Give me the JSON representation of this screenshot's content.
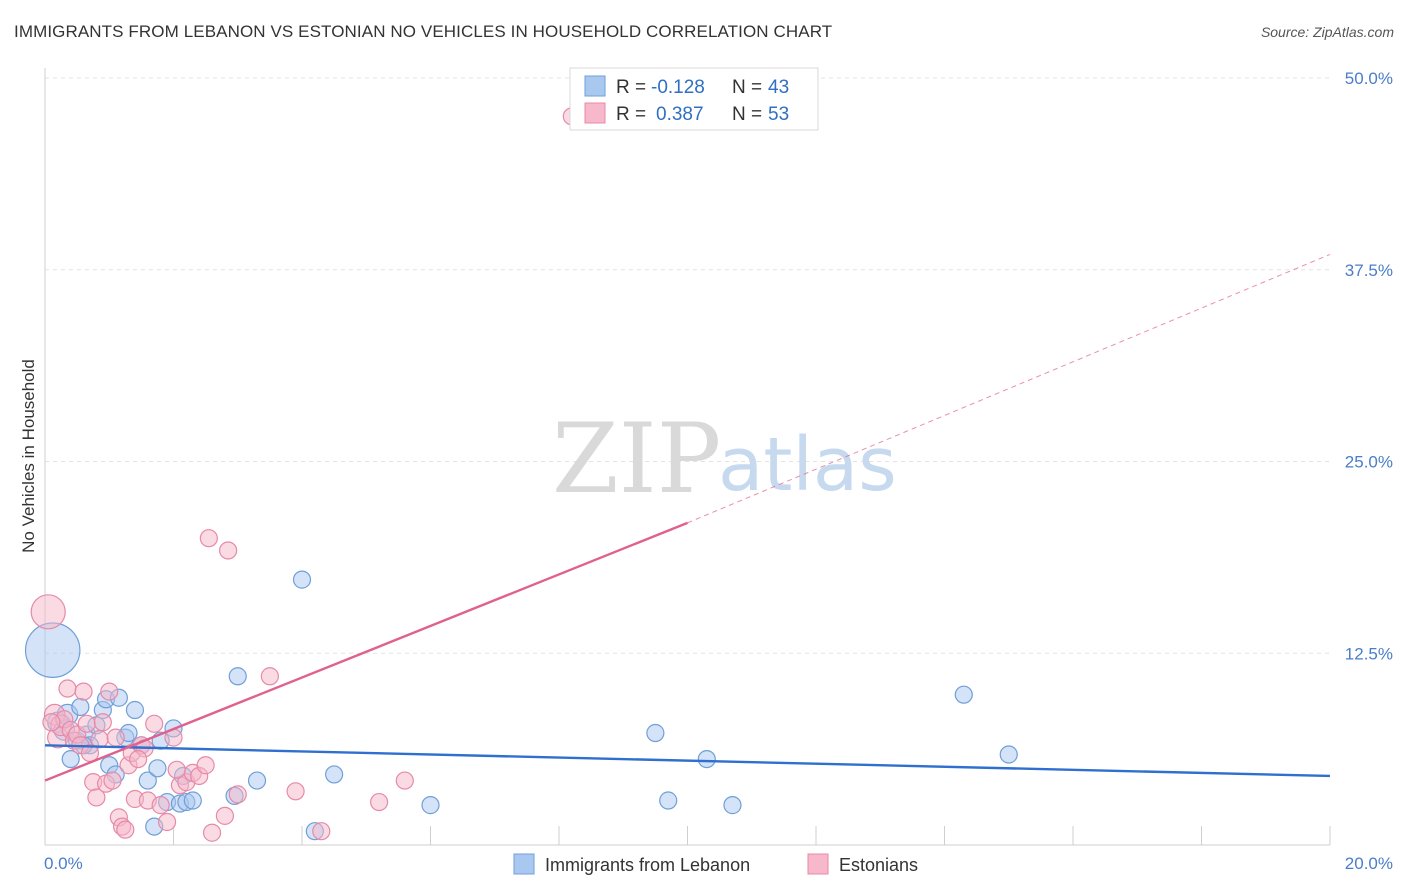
{
  "header": {
    "title": "IMMIGRANTS FROM LEBANON VS ESTONIAN NO VEHICLES IN HOUSEHOLD CORRELATION CHART",
    "source": "Source: ZipAtlas.com"
  },
  "watermark": {
    "zip": "ZIP",
    "atlas": "atlas"
  },
  "legend": {
    "rows": [
      {
        "r_label": "R =",
        "r_value": "-0.128",
        "n_label": "N =",
        "n_value": "43",
        "color": "#a9c8f0",
        "stroke": "#6f9fd8"
      },
      {
        "r_label": "R =",
        "r_value": "0.387",
        "n_label": "N =",
        "n_value": "53",
        "color": "#f6b8ca",
        "stroke": "#e68aa8"
      }
    ]
  },
  "bottom_legend": [
    {
      "label": "Immigrants from Lebanon",
      "color": "#a9c8f0",
      "stroke": "#6f9fd8"
    },
    {
      "label": "Estonians",
      "color": "#f6b8ca",
      "stroke": "#e68aa8"
    }
  ],
  "chart_data": {
    "type": "scatter",
    "title": "IMMIGRANTS FROM LEBANON VS ESTONIAN NO VEHICLES IN HOUSEHOLD CORRELATION CHART",
    "xlabel": "",
    "ylabel": "No Vehicles in Household",
    "xlim": [
      0,
      20
    ],
    "ylim": [
      0,
      50
    ],
    "x_tick_labels": [
      "0.0%",
      "20.0%"
    ],
    "y_ticks": [
      12.5,
      25.0,
      37.5,
      50.0
    ],
    "y_tick_labels": [
      "12.5%",
      "25.0%",
      "37.5%",
      "50.0%"
    ],
    "grid": true,
    "series": [
      {
        "name": "Immigrants from Lebanon",
        "color": "#a9c8f0",
        "stroke": "#6f9fd8",
        "line_color": "#2f6fcf",
        "trend": {
          "x": [
            0,
            20
          ],
          "y": [
            6.5,
            4.5
          ]
        },
        "points": [
          {
            "x": 0.12,
            "y": 12.7,
            "s": 3.2
          },
          {
            "x": 0.2,
            "y": 8.0,
            "s": 1.2
          },
          {
            "x": 0.3,
            "y": 7.5,
            "s": 1.2
          },
          {
            "x": 0.35,
            "y": 8.5,
            "s": 1.2
          },
          {
            "x": 0.4,
            "y": 5.6,
            "s": 1.0
          },
          {
            "x": 0.5,
            "y": 6.8,
            "s": 1.0
          },
          {
            "x": 0.55,
            "y": 9.0,
            "s": 1.0
          },
          {
            "x": 0.65,
            "y": 7.2,
            "s": 1.0
          },
          {
            "x": 0.7,
            "y": 6.5,
            "s": 1.0
          },
          {
            "x": 0.8,
            "y": 7.8,
            "s": 1.0
          },
          {
            "x": 0.9,
            "y": 8.8,
            "s": 1.0
          },
          {
            "x": 0.95,
            "y": 9.5,
            "s": 1.0
          },
          {
            "x": 1.0,
            "y": 5.2,
            "s": 1.0
          },
          {
            "x": 1.1,
            "y": 4.6,
            "s": 1.0
          },
          {
            "x": 1.15,
            "y": 9.6,
            "s": 1.0
          },
          {
            "x": 1.25,
            "y": 7.0,
            "s": 1.0
          },
          {
            "x": 1.3,
            "y": 7.3,
            "s": 1.0
          },
          {
            "x": 1.4,
            "y": 8.8,
            "s": 1.0
          },
          {
            "x": 1.5,
            "y": 6.5,
            "s": 1.0
          },
          {
            "x": 1.6,
            "y": 4.2,
            "s": 1.0
          },
          {
            "x": 1.7,
            "y": 1.2,
            "s": 1.0
          },
          {
            "x": 1.75,
            "y": 5.0,
            "s": 1.0
          },
          {
            "x": 1.8,
            "y": 6.8,
            "s": 1.0
          },
          {
            "x": 1.9,
            "y": 2.8,
            "s": 1.0
          },
          {
            "x": 2.0,
            "y": 7.6,
            "s": 1.0
          },
          {
            "x": 2.1,
            "y": 2.7,
            "s": 1.0
          },
          {
            "x": 2.15,
            "y": 4.5,
            "s": 1.0
          },
          {
            "x": 2.2,
            "y": 2.8,
            "s": 1.0
          },
          {
            "x": 2.3,
            "y": 2.9,
            "s": 1.0
          },
          {
            "x": 2.95,
            "y": 3.2,
            "s": 1.0
          },
          {
            "x": 3.0,
            "y": 11.0,
            "s": 1.0
          },
          {
            "x": 3.3,
            "y": 4.2,
            "s": 1.0
          },
          {
            "x": 4.0,
            "y": 17.3,
            "s": 1.0
          },
          {
            "x": 4.2,
            "y": 0.9,
            "s": 1.0
          },
          {
            "x": 4.5,
            "y": 4.6,
            "s": 1.0
          },
          {
            "x": 6.0,
            "y": 2.6,
            "s": 1.0
          },
          {
            "x": 9.5,
            "y": 7.3,
            "s": 1.0
          },
          {
            "x": 9.7,
            "y": 2.9,
            "s": 1.0
          },
          {
            "x": 10.3,
            "y": 5.6,
            "s": 1.0
          },
          {
            "x": 10.7,
            "y": 2.6,
            "s": 1.0
          },
          {
            "x": 14.3,
            "y": 9.8,
            "s": 1.0
          },
          {
            "x": 15.0,
            "y": 5.9,
            "s": 1.0
          },
          {
            "x": 0.6,
            "y": 6.5,
            "s": 1.0
          }
        ]
      },
      {
        "name": "Estonians",
        "color": "#f6b8ca",
        "stroke": "#e68aa8",
        "line_color": "#e0608e",
        "trend": {
          "x": [
            0,
            10
          ],
          "y": [
            4.2,
            21.0
          ]
        },
        "trend_dashed": {
          "x": [
            10,
            20
          ],
          "y": [
            21.0,
            38.5
          ]
        },
        "points": [
          {
            "x": 0.05,
            "y": 15.2,
            "s": 2.0
          },
          {
            "x": 0.15,
            "y": 8.5,
            "s": 1.2
          },
          {
            "x": 0.2,
            "y": 7.0,
            "s": 1.2
          },
          {
            "x": 0.25,
            "y": 7.8,
            "s": 1.2
          },
          {
            "x": 0.3,
            "y": 8.2,
            "s": 1.0
          },
          {
            "x": 0.35,
            "y": 10.2,
            "s": 1.0
          },
          {
            "x": 0.4,
            "y": 7.5,
            "s": 1.0
          },
          {
            "x": 0.45,
            "y": 6.8,
            "s": 1.0
          },
          {
            "x": 0.5,
            "y": 7.2,
            "s": 1.0
          },
          {
            "x": 0.55,
            "y": 6.5,
            "s": 1.0
          },
          {
            "x": 0.6,
            "y": 10.0,
            "s": 1.0
          },
          {
            "x": 0.65,
            "y": 7.9,
            "s": 1.0
          },
          {
            "x": 0.7,
            "y": 6.0,
            "s": 1.0
          },
          {
            "x": 0.75,
            "y": 4.1,
            "s": 1.0
          },
          {
            "x": 0.8,
            "y": 3.1,
            "s": 1.0
          },
          {
            "x": 0.85,
            "y": 6.9,
            "s": 1.0
          },
          {
            "x": 0.9,
            "y": 8.0,
            "s": 1.0
          },
          {
            "x": 0.95,
            "y": 4.0,
            "s": 1.0
          },
          {
            "x": 1.0,
            "y": 10.0,
            "s": 1.0
          },
          {
            "x": 1.05,
            "y": 4.2,
            "s": 1.0
          },
          {
            "x": 1.1,
            "y": 7.0,
            "s": 1.0
          },
          {
            "x": 1.15,
            "y": 1.8,
            "s": 1.0
          },
          {
            "x": 1.2,
            "y": 1.2,
            "s": 1.0
          },
          {
            "x": 1.25,
            "y": 1.0,
            "s": 1.0
          },
          {
            "x": 1.3,
            "y": 5.2,
            "s": 1.0
          },
          {
            "x": 1.35,
            "y": 6.0,
            "s": 1.0
          },
          {
            "x": 1.4,
            "y": 3.0,
            "s": 1.0
          },
          {
            "x": 1.5,
            "y": 6.5,
            "s": 1.0
          },
          {
            "x": 1.6,
            "y": 2.9,
            "s": 1.0
          },
          {
            "x": 1.7,
            "y": 7.9,
            "s": 1.0
          },
          {
            "x": 1.8,
            "y": 2.6,
            "s": 1.0
          },
          {
            "x": 1.9,
            "y": 1.5,
            "s": 1.0
          },
          {
            "x": 2.0,
            "y": 7.0,
            "s": 1.0
          },
          {
            "x": 2.1,
            "y": 3.9,
            "s": 1.0
          },
          {
            "x": 2.2,
            "y": 4.1,
            "s": 1.0
          },
          {
            "x": 2.3,
            "y": 4.7,
            "s": 1.0
          },
          {
            "x": 2.4,
            "y": 4.5,
            "s": 1.0
          },
          {
            "x": 2.5,
            "y": 5.2,
            "s": 1.0
          },
          {
            "x": 2.6,
            "y": 0.8,
            "s": 1.0
          },
          {
            "x": 2.8,
            "y": 1.9,
            "s": 1.0
          },
          {
            "x": 3.0,
            "y": 3.3,
            "s": 1.0
          },
          {
            "x": 3.5,
            "y": 11.0,
            "s": 1.0
          },
          {
            "x": 3.9,
            "y": 3.5,
            "s": 1.0
          },
          {
            "x": 4.3,
            "y": 0.9,
            "s": 1.0
          },
          {
            "x": 5.2,
            "y": 2.8,
            "s": 1.0
          },
          {
            "x": 5.6,
            "y": 4.2,
            "s": 1.0
          },
          {
            "x": 2.55,
            "y": 20.0,
            "s": 1.0
          },
          {
            "x": 2.85,
            "y": 19.2,
            "s": 1.0
          },
          {
            "x": 8.2,
            "y": 47.5,
            "s": 1.0
          },
          {
            "x": 1.55,
            "y": 6.3,
            "s": 1.0
          },
          {
            "x": 0.1,
            "y": 8.0,
            "s": 1.0
          },
          {
            "x": 1.45,
            "y": 5.6,
            "s": 1.0
          },
          {
            "x": 2.05,
            "y": 4.9,
            "s": 1.0
          }
        ]
      }
    ]
  }
}
